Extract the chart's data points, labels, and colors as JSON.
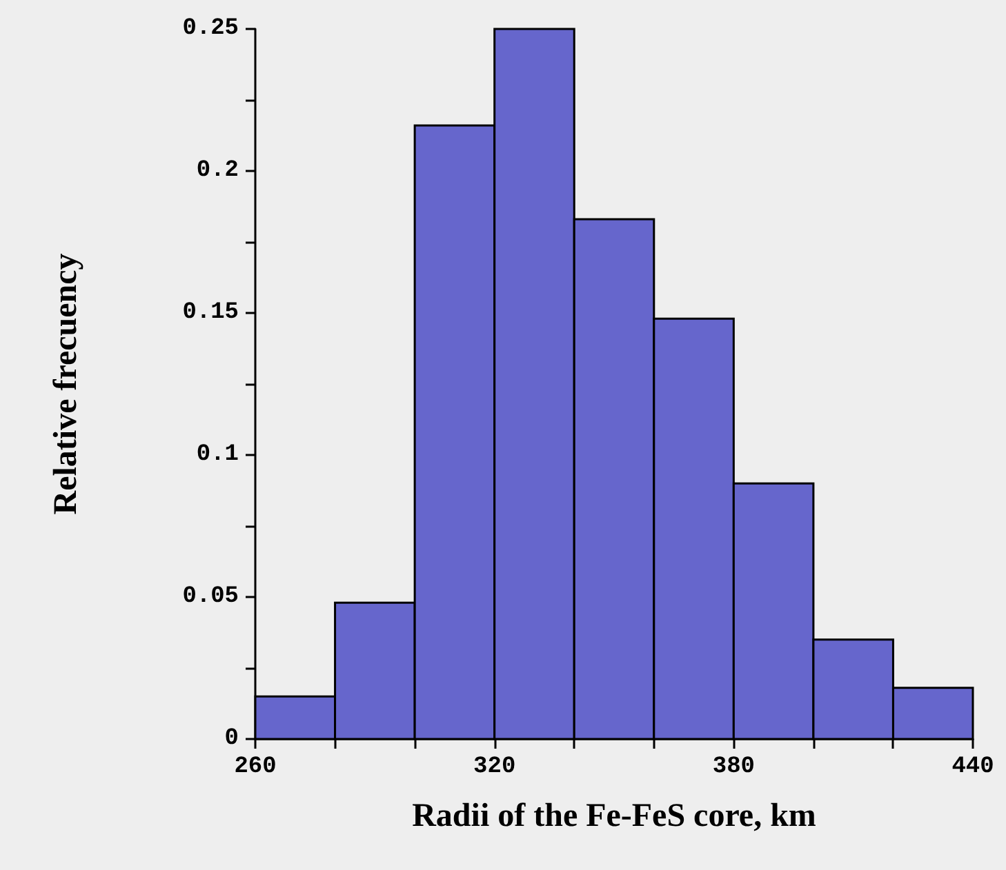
{
  "chart_data": {
    "type": "histogram",
    "xlabel": "Radii of the Fe-FeS core, km",
    "ylabel": "Relative frecuency",
    "bins": [
      260,
      280,
      300,
      320,
      340,
      360,
      380,
      400,
      420,
      440
    ],
    "values": [
      0.015,
      0.048,
      0.216,
      0.25,
      0.183,
      0.148,
      0.09,
      0.035,
      0.018
    ],
    "color": "#6666cc",
    "xlim": [
      260,
      440
    ],
    "xticks": [
      260,
      {
        "value": 280,
        "label": null
      },
      {
        "value": 300,
        "label": null
      },
      320,
      {
        "value": 340,
        "label": null
      },
      {
        "value": 360,
        "label": null
      },
      380,
      {
        "value": 400,
        "label": null
      },
      {
        "value": 420,
        "label": null
      },
      440
    ],
    "ylim": [
      0,
      0.25
    ],
    "yticks": [
      0,
      {
        "value": 0.025,
        "label": null
      },
      0.05,
      {
        "value": 0.075,
        "label": null
      },
      0.1,
      {
        "value": 0.125,
        "label": null
      },
      0.15,
      {
        "value": 0.175,
        "label": null
      },
      0.2,
      {
        "value": 0.225,
        "label": null
      },
      0.25
    ],
    "grid": false,
    "legend": false
  }
}
